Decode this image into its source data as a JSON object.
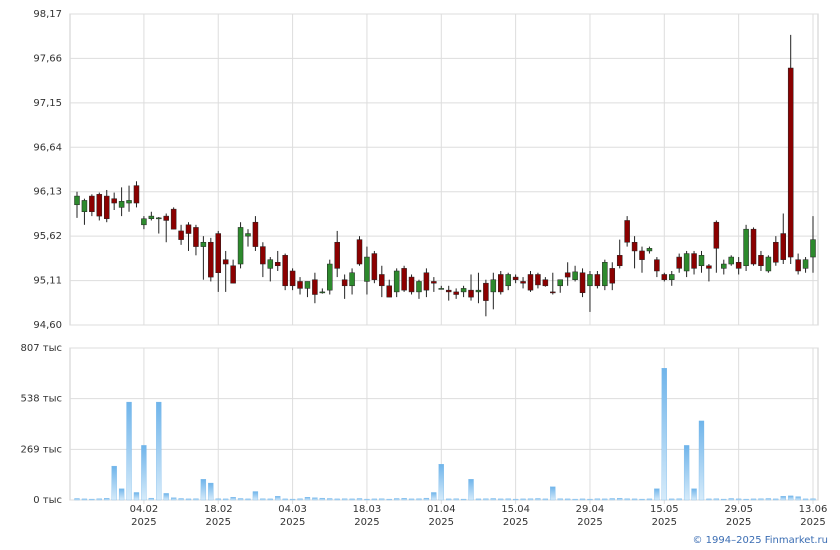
{
  "chart_data": {
    "type": "candlestick",
    "categories": [
      null,
      null,
      null,
      null,
      null,
      null,
      null,
      null,
      null,
      "04.02\n2025",
      null,
      null,
      null,
      null,
      null,
      null,
      null,
      null,
      null,
      "18.02\n2025",
      null,
      null,
      null,
      null,
      null,
      null,
      null,
      null,
      null,
      "04.03\n2025",
      null,
      null,
      null,
      null,
      null,
      null,
      null,
      null,
      null,
      "18.03\n2025",
      null,
      null,
      null,
      null,
      null,
      null,
      null,
      null,
      null,
      "01.04\n2025",
      null,
      null,
      null,
      null,
      null,
      null,
      null,
      null,
      null,
      "15.04\n2025",
      null,
      null,
      null,
      null,
      null,
      null,
      null,
      null,
      null,
      "29.04\n2025",
      null,
      null,
      null,
      null,
      null,
      null,
      null,
      null,
      null,
      "15.05\n2025",
      null,
      null,
      null,
      null,
      null,
      null,
      null,
      null,
      null,
      "29.05\n2025",
      null,
      null,
      null,
      null,
      null,
      null,
      null,
      null,
      null,
      "13.06\n2025"
    ],
    "open": [
      95.98,
      95.9,
      96.08,
      96.1,
      96.08,
      96.05,
      95.95,
      96.0,
      96.2,
      95.75,
      95.82,
      95.82,
      95.85,
      95.93,
      95.68,
      95.75,
      95.72,
      95.5,
      95.55,
      95.65,
      95.35,
      95.28,
      95.3,
      95.62,
      95.78,
      95.5,
      95.25,
      95.32,
      95.4,
      95.22,
      95.1,
      95.02,
      95.12,
      94.98,
      95.0,
      95.55,
      95.12,
      95.05,
      95.58,
      95.1,
      95.42,
      95.18,
      95.05,
      94.98,
      95.25,
      95.15,
      94.98,
      95.2,
      95.1,
      95.02,
      95.0,
      94.98,
      94.98,
      95.0,
      94.98,
      95.08,
      94.98,
      95.18,
      95.05,
      95.15,
      95.1,
      95.18,
      95.18,
      95.12,
      94.98,
      95.05,
      95.2,
      95.12,
      95.2,
      95.05,
      95.18,
      95.05,
      95.25,
      95.4,
      95.8,
      95.55,
      95.45,
      95.45,
      95.35,
      95.18,
      95.12,
      95.38,
      95.22,
      95.42,
      95.28,
      95.28,
      95.78,
      95.25,
      95.3,
      95.32,
      95.28,
      95.7,
      95.4,
      95.22,
      95.55,
      95.65,
      97.55,
      95.35,
      95.25,
      95.38
    ],
    "high": [
      96.13,
      96.05,
      96.1,
      96.12,
      96.15,
      96.12,
      96.18,
      96.2,
      96.25,
      95.85,
      95.9,
      95.84,
      95.88,
      95.95,
      95.75,
      95.78,
      95.75,
      95.62,
      95.6,
      95.68,
      95.45,
      95.35,
      95.78,
      95.7,
      95.85,
      95.55,
      95.38,
      95.45,
      95.42,
      95.25,
      95.15,
      95.1,
      95.2,
      95.02,
      95.35,
      95.68,
      95.18,
      95.25,
      95.62,
      95.5,
      95.45,
      95.28,
      95.12,
      95.25,
      95.28,
      95.18,
      95.12,
      95.25,
      95.15,
      95.05,
      95.05,
      95.02,
      95.05,
      95.18,
      95.2,
      95.12,
      95.2,
      95.22,
      95.2,
      95.18,
      95.15,
      95.22,
      95.2,
      95.15,
      95.2,
      95.1,
      95.32,
      95.28,
      95.25,
      95.22,
      95.22,
      95.35,
      95.32,
      95.58,
      95.85,
      95.62,
      95.5,
      95.5,
      95.38,
      95.2,
      95.22,
      95.42,
      95.45,
      95.45,
      95.45,
      95.3,
      95.8,
      95.35,
      95.4,
      95.38,
      95.75,
      95.72,
      95.45,
      95.4,
      95.62,
      95.88,
      97.93,
      95.42,
      95.38,
      95.85
    ],
    "low": [
      95.83,
      95.75,
      95.85,
      95.8,
      95.78,
      95.92,
      95.85,
      95.9,
      95.95,
      95.7,
      95.8,
      95.65,
      95.55,
      95.7,
      95.52,
      95.45,
      95.4,
      95.12,
      95.1,
      94.98,
      94.98,
      95.08,
      95.25,
      95.5,
      95.45,
      95.15,
      95.1,
      95.22,
      95.0,
      95.0,
      94.95,
      94.92,
      94.85,
      94.96,
      94.95,
      95.15,
      94.9,
      94.95,
      95.28,
      94.95,
      95.08,
      94.92,
      94.92,
      94.92,
      94.98,
      94.95,
      94.9,
      94.92,
      94.98,
      95.01,
      94.88,
      94.9,
      94.92,
      94.88,
      94.85,
      94.7,
      94.78,
      94.95,
      95.0,
      95.08,
      95.02,
      94.98,
      95.02,
      95.04,
      94.95,
      94.97,
      95.05,
      95.1,
      94.92,
      94.75,
      95.02,
      95.0,
      95.0,
      95.25,
      95.5,
      95.25,
      95.2,
      95.42,
      95.15,
      95.1,
      95.05,
      95.2,
      95.15,
      95.18,
      95.2,
      95.1,
      95.2,
      95.18,
      95.28,
      95.18,
      95.22,
      95.28,
      95.22,
      95.2,
      95.28,
      95.3,
      95.3,
      95.18,
      95.2,
      95.2
    ],
    "close": [
      96.08,
      96.03,
      95.9,
      95.85,
      95.82,
      96.0,
      96.02,
      96.03,
      96.0,
      95.82,
      95.85,
      95.83,
      95.8,
      95.7,
      95.58,
      95.65,
      95.5,
      95.55,
      95.15,
      95.2,
      95.3,
      95.08,
      95.72,
      95.65,
      95.5,
      95.3,
      95.35,
      95.28,
      95.05,
      95.05,
      95.02,
      95.1,
      94.95,
      94.98,
      95.3,
      95.25,
      95.05,
      95.2,
      95.3,
      95.38,
      95.12,
      95.05,
      94.92,
      95.22,
      95.0,
      94.98,
      95.1,
      95.0,
      95.08,
      95.02,
      94.98,
      94.95,
      95.02,
      94.92,
      95.0,
      94.88,
      95.12,
      94.98,
      95.18,
      95.12,
      95.08,
      95.0,
      95.06,
      95.05,
      94.97,
      95.12,
      95.15,
      95.21,
      94.97,
      95.18,
      95.05,
      95.32,
      95.08,
      95.28,
      95.55,
      95.45,
      95.35,
      95.48,
      95.22,
      95.12,
      95.18,
      95.25,
      95.42,
      95.25,
      95.4,
      95.25,
      95.48,
      95.3,
      95.38,
      95.25,
      95.7,
      95.3,
      95.28,
      95.38,
      95.32,
      95.35,
      95.38,
      95.22,
      95.35,
      95.58
    ],
    "volume": [
      8000,
      6000,
      5000,
      7000,
      9000,
      180000,
      60000,
      520000,
      40000,
      290000,
      10000,
      520000,
      35000,
      12000,
      8000,
      6000,
      7000,
      110000,
      90000,
      7000,
      6000,
      15000,
      8000,
      6000,
      45000,
      7000,
      6000,
      20000,
      6000,
      5000,
      7000,
      15000,
      12000,
      10000,
      8000,
      6000,
      7000,
      6000,
      8000,
      5000,
      6000,
      7000,
      5000,
      8000,
      9000,
      6000,
      7000,
      10000,
      40000,
      190000,
      6000,
      7000,
      5000,
      110000,
      6000,
      7000,
      8000,
      6000,
      7000,
      5000,
      6000,
      7000,
      8000,
      6000,
      70000,
      7000,
      6000,
      5000,
      6000,
      5000,
      7000,
      6000,
      8000,
      9000,
      7000,
      6000,
      5000,
      6000,
      60000,
      700000,
      6000,
      7000,
      290000,
      60000,
      420000,
      6000,
      7000,
      5000,
      8000,
      6000,
      5000,
      6000,
      7000,
      8000,
      6000,
      20000,
      22000,
      18000,
      6000,
      7000
    ],
    "ylim": [
      94.6,
      98.17
    ],
    "yticks": [
      {
        "value": 94.6,
        "label": "94,60"
      },
      {
        "value": 95.11,
        "label": "95,11"
      },
      {
        "value": 95.62,
        "label": "95,62"
      },
      {
        "value": 96.13,
        "label": "96,13"
      },
      {
        "value": 96.64,
        "label": "96,64"
      },
      {
        "value": 97.15,
        "label": "97,15"
      },
      {
        "value": 97.66,
        "label": "97,66"
      },
      {
        "value": 98.17,
        "label": "98,17"
      }
    ],
    "volume_ylim": [
      0,
      807000
    ],
    "volume_yticks": [
      {
        "value": 0,
        "label": "0 тыс"
      },
      {
        "value": 269000,
        "label": "269 тыс"
      },
      {
        "value": 538000,
        "label": "538 тыс"
      },
      {
        "value": 807000,
        "label": "807 тыс"
      }
    ],
    "up_color": "#2d8a2d",
    "down_color": "#8b0000",
    "volume_color": "#6fb4ea",
    "grid": true
  },
  "footer": "© 1994–2025 Finmarket.ru"
}
